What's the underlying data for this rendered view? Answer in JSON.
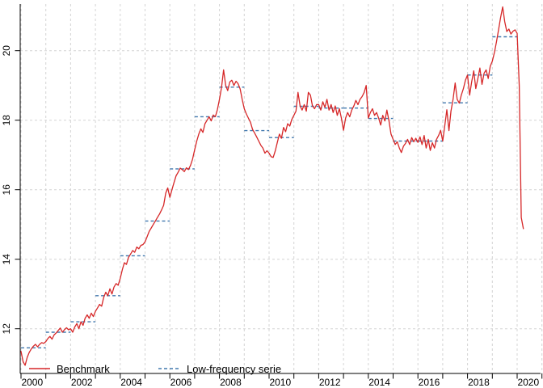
{
  "chart_data": {
    "type": "line",
    "title": "",
    "xlabel": "",
    "ylabel": "",
    "x_axis": {
      "range": [
        1999.95,
        2021.05
      ],
      "tick_years_start": 2000,
      "tick_years_end": 2021,
      "labeled_years": [
        2000,
        2002,
        2004,
        2006,
        2008,
        2010,
        2012,
        2014,
        2016,
        2018,
        2020
      ]
    },
    "y_axis": {
      "range": [
        10.7,
        21.35
      ],
      "ticks": [
        12,
        14,
        16,
        18,
        20
      ]
    },
    "grid": true,
    "legend_position": "bottom-left",
    "series": [
      {
        "name": "Benchmark",
        "color": "#d62728",
        "style": "solid",
        "frequency": "monthly",
        "start_year": 2000,
        "values": [
          11.35,
          11.05,
          10.95,
          11.18,
          11.32,
          11.42,
          11.5,
          11.55,
          11.48,
          11.55,
          11.6,
          11.58,
          11.63,
          11.72,
          11.78,
          11.7,
          11.82,
          11.88,
          11.95,
          12.02,
          11.9,
          11.97,
          12.03,
          11.97,
          12.0,
          11.9,
          12.05,
          12.15,
          12.0,
          12.2,
          12.1,
          12.3,
          12.4,
          12.3,
          12.45,
          12.35,
          12.5,
          12.6,
          12.7,
          12.65,
          12.9,
          13.05,
          12.95,
          13.15,
          13.0,
          13.2,
          13.3,
          13.25,
          13.45,
          13.7,
          13.9,
          13.85,
          14.05,
          14.15,
          14.25,
          14.2,
          14.35,
          14.3,
          14.4,
          14.42,
          14.5,
          14.65,
          14.8,
          14.9,
          15.0,
          15.1,
          15.2,
          15.3,
          15.42,
          15.55,
          15.9,
          16.05,
          15.78,
          16.0,
          16.2,
          16.4,
          16.5,
          16.62,
          16.58,
          16.52,
          16.63,
          16.58,
          16.7,
          16.88,
          17.15,
          17.4,
          17.6,
          17.75,
          17.65,
          17.9,
          18.0,
          18.1,
          17.98,
          18.15,
          18.1,
          18.3,
          18.6,
          18.95,
          19.45,
          19.0,
          18.85,
          19.1,
          19.15,
          19.0,
          19.12,
          19.05,
          18.9,
          18.6,
          18.33,
          18.18,
          18.06,
          17.94,
          17.74,
          17.63,
          17.52,
          17.4,
          17.28,
          17.2,
          17.05,
          17.12,
          17.05,
          16.95,
          16.93,
          17.12,
          17.36,
          17.6,
          17.48,
          17.79,
          17.67,
          17.9,
          17.83,
          18.02,
          18.14,
          18.26,
          18.8,
          18.41,
          18.29,
          18.45,
          18.26,
          18.8,
          18.72,
          18.41,
          18.33,
          18.45,
          18.45,
          18.29,
          18.53,
          18.37,
          18.6,
          18.29,
          18.45,
          18.22,
          18.41,
          18.14,
          18.33,
          18.06,
          17.71,
          18.06,
          18.22,
          18.1,
          18.29,
          18.41,
          18.57,
          18.45,
          18.6,
          18.68,
          18.8,
          19.0,
          18.06,
          18.22,
          18.33,
          18.14,
          18.22,
          18.06,
          17.86,
          18.14,
          17.98,
          18.29,
          17.98,
          17.6,
          17.45,
          17.3,
          17.38,
          17.2,
          17.07,
          17.25,
          17.33,
          17.45,
          17.3,
          17.5,
          17.38,
          17.48,
          17.36,
          17.52,
          17.3,
          17.56,
          17.2,
          17.45,
          17.13,
          17.35,
          17.2,
          17.45,
          17.56,
          17.71,
          17.4,
          17.85,
          18.3,
          17.7,
          18.26,
          18.6,
          19.07,
          18.6,
          18.49,
          18.72,
          18.91,
          19.15,
          19.3,
          18.72,
          19.1,
          19.42,
          18.91,
          19.2,
          19.5,
          19.03,
          19.35,
          19.45,
          19.2,
          19.55,
          19.7,
          19.95,
          20.25,
          20.6,
          20.95,
          21.26,
          20.84,
          20.55,
          20.62,
          20.48,
          20.56,
          20.6,
          20.5,
          19.0,
          15.2,
          14.88
        ]
      },
      {
        "name": "Low-frequency serie",
        "color": "#4178ae",
        "style": "dashed-step",
        "frequency": "annual",
        "years": [
          2000,
          2001,
          2002,
          2003,
          2004,
          2005,
          2006,
          2007,
          2008,
          2009,
          2010,
          2011,
          2012,
          2013,
          2014,
          2015,
          2016,
          2017,
          2018,
          2019
        ],
        "values": [
          11.45,
          11.9,
          12.2,
          12.95,
          14.1,
          15.1,
          16.6,
          18.1,
          18.95,
          17.7,
          17.5,
          18.4,
          18.35,
          18.35,
          18.05,
          17.4,
          17.4,
          18.5,
          19.3,
          20.4
        ]
      }
    ]
  },
  "legend": {
    "benchmark_label": "Benchmark",
    "lowfreq_label": "Low-frequency serie"
  },
  "colors": {
    "benchmark": "#d62728",
    "low_frequency": "#4178ae",
    "gridline": "#d4d4d4",
    "axis": "#000000",
    "background": "#ffffff"
  }
}
